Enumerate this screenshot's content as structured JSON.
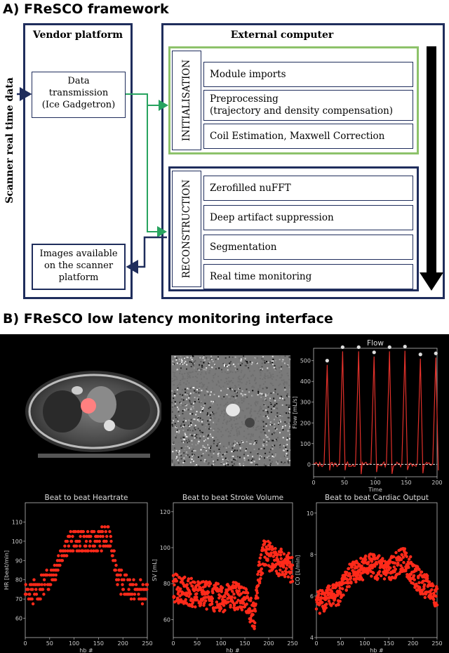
{
  "sectionA": {
    "title": "A) FReSCO framework",
    "side_label": "Scanner real time data",
    "vendor": {
      "title": "Vendor platform",
      "data_box": [
        "Data",
        "transmission",
        "(Ice Gadgetron)"
      ],
      "images_box": [
        "Images available",
        "on the scanner",
        "platform"
      ]
    },
    "external": {
      "title": "External computer",
      "init_label": "INITIALISATION",
      "init_modules": [
        [
          "Module imports"
        ],
        [
          "Preprocessing",
          "(trajectory and density compensation)"
        ],
        [
          "Coil Estimation, Maxwell Correction"
        ]
      ],
      "recon_label": "RECONSTRUCTION",
      "recon_modules": [
        [
          "Zerofilled nuFFT"
        ],
        [
          "Deep artifact suppression"
        ],
        [
          "Segmentation"
        ],
        [
          "Real time monitoring"
        ]
      ]
    },
    "colors": {
      "frame": "#1f2d5c",
      "init": "#8dc26a",
      "arrow_green": "#27a35f"
    }
  },
  "sectionB": {
    "title": "B) FReSCO low latency monitoring interface"
  },
  "chart_data": [
    {
      "type": "line",
      "title": "Flow",
      "xlabel": "Time",
      "ylabel": "Flow [mL/s]",
      "xlim": [
        0,
        200
      ],
      "ylim": [
        -60,
        560
      ],
      "xticks": [
        0,
        50,
        100,
        150,
        200
      ],
      "yticks": [
        0,
        100,
        200,
        300,
        400,
        500
      ],
      "baseline": 0,
      "peaks": [
        {
          "x": 22,
          "y": 480
        },
        {
          "x": 47,
          "y": 545
        },
        {
          "x": 73,
          "y": 545
        },
        {
          "x": 98,
          "y": 520
        },
        {
          "x": 123,
          "y": 545
        },
        {
          "x": 148,
          "y": 548
        },
        {
          "x": 173,
          "y": 510
        },
        {
          "x": 198,
          "y": 515
        }
      ]
    },
    {
      "type": "scatter",
      "title": "Beat to beat Heartrate",
      "xlabel": "hb #",
      "ylabel": "HR [beat/min]",
      "xlim": [
        0,
        250
      ],
      "ylim": [
        50,
        120
      ],
      "xticks": [
        0,
        50,
        100,
        150,
        200,
        250
      ],
      "yticks": [
        60,
        70,
        80,
        90,
        100,
        110
      ],
      "trend": [
        [
          0,
          72
        ],
        [
          30,
          75
        ],
        [
          60,
          85
        ],
        [
          80,
          97
        ],
        [
          100,
          100
        ],
        [
          140,
          100
        ],
        [
          175,
          102
        ],
        [
          190,
          80
        ],
        [
          220,
          75
        ],
        [
          250,
          72
        ]
      ],
      "spread": 6
    },
    {
      "type": "scatter",
      "title": "Beat to beat Stroke Volume",
      "xlabel": "hb #",
      "ylabel": "SV [mL]",
      "xlim": [
        0,
        250
      ],
      "ylim": [
        50,
        125
      ],
      "xticks": [
        0,
        50,
        100,
        150,
        200,
        250
      ],
      "yticks": [
        60,
        80,
        100,
        120
      ],
      "trend": [
        [
          0,
          78
        ],
        [
          50,
          74
        ],
        [
          100,
          72
        ],
        [
          140,
          74
        ],
        [
          170,
          62
        ],
        [
          180,
          85
        ],
        [
          190,
          97
        ],
        [
          220,
          92
        ],
        [
          250,
          88
        ]
      ],
      "spread": 8
    },
    {
      "type": "scatter",
      "title": "Beat to beat Cardiac Output",
      "xlabel": "hb #",
      "ylabel": "CO [L/min]",
      "xlim": [
        0,
        250
      ],
      "ylim": [
        4,
        10.5
      ],
      "xticks": [
        0,
        50,
        100,
        150,
        200,
        250
      ],
      "yticks": [
        4,
        6,
        8,
        10
      ],
      "trend": [
        [
          0,
          5.7
        ],
        [
          50,
          6.2
        ],
        [
          75,
          7.2
        ],
        [
          110,
          7.5
        ],
        [
          150,
          7.2
        ],
        [
          180,
          7.8
        ],
        [
          210,
          6.8
        ],
        [
          250,
          6.0
        ]
      ],
      "spread": 0.6
    }
  ]
}
